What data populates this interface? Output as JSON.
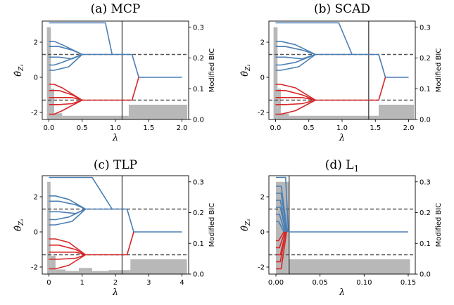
{
  "figure": {
    "colors": {
      "group_pos": "#4a7fb5",
      "group_neg": "#d62728",
      "bic_bar": "#b8b8b8",
      "dashed": "#555555",
      "vline": "#333333"
    }
  },
  "chart_data": [
    {
      "type": "line",
      "title": "(a) MCP",
      "xlabel": "λ",
      "ylabel_left": "θ̂_{Z₁}",
      "ylabel_right": "Modified BIC",
      "xlim": [
        -0.1,
        2.1
      ],
      "ylim_left": [
        -2.4,
        3.2
      ],
      "ylim_right": [
        0,
        0.32
      ],
      "xticks": [
        0.0,
        0.5,
        1.0,
        1.5,
        2.0
      ],
      "xtick_labels": [
        "0.0",
        "0.5",
        "1.0",
        "1.5",
        "2.0"
      ],
      "yticks_left": [
        -2,
        0,
        2
      ],
      "yticks_right": [
        0.0,
        0.1,
        0.2,
        0.3
      ],
      "dashed_levels": [
        1.3,
        -1.3
      ],
      "selected_lambda": 1.1,
      "group_pos": {
        "top": [
          [
            0,
            3.1
          ],
          [
            0.85,
            3.1
          ],
          [
            0.95,
            1.3
          ]
        ],
        "cluster": [
          [
            [
              0,
              2.05
            ],
            [
              0.08,
              2.05
            ],
            [
              0.2,
              1.85
            ],
            [
              0.5,
              1.3
            ]
          ],
          [
            [
              0,
              1.75
            ],
            [
              0.15,
              1.75
            ],
            [
              0.35,
              1.55
            ],
            [
              0.5,
              1.3
            ]
          ],
          [
            [
              0,
              1.15
            ],
            [
              0.15,
              1.15
            ],
            [
              0.35,
              1.05
            ],
            [
              0.5,
              1.3
            ]
          ],
          [
            [
              0,
              0.7
            ],
            [
              0.08,
              0.7
            ],
            [
              0.2,
              0.85
            ],
            [
              0.5,
              1.3
            ]
          ],
          [
            [
              0,
              0.4
            ],
            [
              0.08,
              0.4
            ],
            [
              0.3,
              0.6
            ],
            [
              0.5,
              1.3
            ]
          ]
        ],
        "trunk": [
          [
            0.5,
            1.3
          ],
          [
            1.25,
            1.3
          ]
        ],
        "tail": [
          [
            1.25,
            1.3
          ],
          [
            1.35,
            0
          ],
          [
            2.0,
            0
          ]
        ]
      },
      "group_neg": {
        "cluster": [
          [
            [
              0,
              -0.4
            ],
            [
              0.08,
              -0.4
            ],
            [
              0.2,
              -0.6
            ],
            [
              0.5,
              -1.3
            ]
          ],
          [
            [
              0,
              -0.75
            ],
            [
              0.15,
              -0.75
            ],
            [
              0.35,
              -1.0
            ],
            [
              0.5,
              -1.3
            ]
          ],
          [
            [
              0,
              -1.15
            ],
            [
              0.15,
              -1.15
            ],
            [
              0.35,
              -1.15
            ],
            [
              0.5,
              -1.3
            ]
          ],
          [
            [
              0,
              -1.55
            ],
            [
              0.15,
              -1.55
            ],
            [
              0.35,
              -1.5
            ],
            [
              0.5,
              -1.3
            ]
          ],
          [
            [
              0,
              -2.1
            ],
            [
              0.08,
              -2.1
            ],
            [
              0.2,
              -1.9
            ],
            [
              0.5,
              -1.3
            ]
          ]
        ],
        "trunk": [
          [
            0.5,
            -1.3
          ],
          [
            1.25,
            -1.3
          ]
        ],
        "tail": [
          [
            1.25,
            -1.3
          ],
          [
            1.35,
            0
          ]
        ]
      },
      "bic_bars": [
        [
          -0.03,
          0.03,
          0.3
        ],
        [
          0.03,
          0.08,
          0.1
        ],
        [
          0.08,
          0.2,
          0.02
        ],
        [
          0.2,
          1.2,
          0.012
        ],
        [
          1.2,
          2.08,
          0.048
        ]
      ]
    },
    {
      "type": "line",
      "title": "(b) SCAD",
      "xlabel": "λ",
      "ylabel_left": "θ̂_{Z₁}",
      "ylabel_right": "Modified BIC",
      "xlim": [
        -0.1,
        2.1
      ],
      "ylim_left": [
        -2.4,
        3.2
      ],
      "ylim_right": [
        0,
        0.32
      ],
      "xticks": [
        0.0,
        0.5,
        1.0,
        1.5,
        2.0
      ],
      "xtick_labels": [
        "0.0",
        "0.5",
        "1.0",
        "1.5",
        "2.0"
      ],
      "yticks_left": [
        -2,
        0,
        2
      ],
      "yticks_right": [
        0.0,
        0.1,
        0.2,
        0.3
      ],
      "dashed_levels": [
        1.3,
        -1.3
      ],
      "selected_lambda": 1.4,
      "group_pos": {
        "top": [
          [
            0,
            3.1
          ],
          [
            0.95,
            3.1
          ],
          [
            1.15,
            1.3
          ]
        ],
        "cluster": [
          [
            [
              0,
              2.05
            ],
            [
              0.08,
              2.05
            ],
            [
              0.3,
              1.85
            ],
            [
              0.6,
              1.3
            ]
          ],
          [
            [
              0,
              1.75
            ],
            [
              0.15,
              1.75
            ],
            [
              0.4,
              1.55
            ],
            [
              0.6,
              1.3
            ]
          ],
          [
            [
              0,
              1.15
            ],
            [
              0.15,
              1.15
            ],
            [
              0.4,
              1.05
            ],
            [
              0.6,
              1.3
            ]
          ],
          [
            [
              0,
              0.7
            ],
            [
              0.08,
              0.7
            ],
            [
              0.3,
              0.85
            ],
            [
              0.6,
              1.3
            ]
          ],
          [
            [
              0,
              0.4
            ],
            [
              0.08,
              0.4
            ],
            [
              0.35,
              0.6
            ],
            [
              0.6,
              1.3
            ]
          ]
        ],
        "trunk": [
          [
            0.6,
            1.3
          ],
          [
            1.55,
            1.3
          ]
        ],
        "tail": [
          [
            1.55,
            1.3
          ],
          [
            1.65,
            0
          ],
          [
            2.0,
            0
          ]
        ]
      },
      "group_neg": {
        "cluster": [
          [
            [
              0,
              -0.4
            ],
            [
              0.08,
              -0.4
            ],
            [
              0.3,
              -0.6
            ],
            [
              0.6,
              -1.3
            ]
          ],
          [
            [
              0,
              -0.75
            ],
            [
              0.15,
              -0.75
            ],
            [
              0.4,
              -1.0
            ],
            [
              0.6,
              -1.3
            ]
          ],
          [
            [
              0,
              -1.15
            ],
            [
              0.15,
              -1.15
            ],
            [
              0.4,
              -1.15
            ],
            [
              0.6,
              -1.3
            ]
          ],
          [
            [
              0,
              -1.55
            ],
            [
              0.15,
              -1.55
            ],
            [
              0.4,
              -1.5
            ],
            [
              0.6,
              -1.3
            ]
          ],
          [
            [
              0,
              -2.1
            ],
            [
              0.08,
              -2.1
            ],
            [
              0.3,
              -1.9
            ],
            [
              0.6,
              -1.3
            ]
          ]
        ],
        "trunk": [
          [
            0.6,
            -1.3
          ],
          [
            1.55,
            -1.3
          ]
        ],
        "tail": [
          [
            1.55,
            -1.3
          ],
          [
            1.65,
            0
          ]
        ]
      },
      "bic_bars": [
        [
          -0.03,
          0.03,
          0.3
        ],
        [
          0.03,
          0.08,
          0.1
        ],
        [
          0.08,
          0.2,
          0.02
        ],
        [
          0.2,
          1.55,
          0.012
        ],
        [
          1.55,
          2.08,
          0.048
        ]
      ]
    },
    {
      "type": "line",
      "title": "(c) TLP",
      "xlabel": "λ",
      "ylabel_left": "θ̂_{Z₁}",
      "ylabel_right": "Modified BIC",
      "xlim": [
        -0.2,
        4.2
      ],
      "ylim_left": [
        -2.4,
        3.2
      ],
      "ylim_right": [
        0,
        0.32
      ],
      "xticks": [
        0,
        1,
        2,
        3,
        4
      ],
      "xtick_labels": [
        "0",
        "1",
        "2",
        "3",
        "4"
      ],
      "yticks_left": [
        -2,
        0,
        2
      ],
      "yticks_right": [
        0.0,
        0.1,
        0.2,
        0.3
      ],
      "dashed_levels": [
        1.3,
        -1.3
      ],
      "selected_lambda": 2.2,
      "group_pos": {
        "top": [
          [
            0,
            3.1
          ],
          [
            1.3,
            3.1
          ],
          [
            1.9,
            1.3
          ]
        ],
        "cluster": [
          [
            [
              0,
              2.05
            ],
            [
              0.2,
              2.05
            ],
            [
              0.6,
              1.85
            ],
            [
              1.1,
              1.3
            ]
          ],
          [
            [
              0,
              1.75
            ],
            [
              0.3,
              1.75
            ],
            [
              0.8,
              1.55
            ],
            [
              1.1,
              1.3
            ]
          ],
          [
            [
              0,
              1.15
            ],
            [
              0.3,
              1.15
            ],
            [
              0.8,
              1.05
            ],
            [
              1.1,
              1.3
            ]
          ],
          [
            [
              0,
              0.7
            ],
            [
              0.2,
              0.7
            ],
            [
              0.6,
              0.85
            ],
            [
              1.1,
              1.3
            ]
          ],
          [
            [
              0,
              0.4
            ],
            [
              0.2,
              0.4
            ],
            [
              0.7,
              0.6
            ],
            [
              1.1,
              1.3
            ]
          ]
        ],
        "trunk": [
          [
            1.1,
            1.3
          ],
          [
            2.35,
            1.3
          ]
        ],
        "tail": [
          [
            2.35,
            1.3
          ],
          [
            2.55,
            0
          ],
          [
            4.0,
            0
          ]
        ]
      },
      "group_neg": {
        "cluster": [
          [
            [
              0,
              -0.4
            ],
            [
              0.2,
              -0.4
            ],
            [
              0.6,
              -0.6
            ],
            [
              1.1,
              -1.3
            ]
          ],
          [
            [
              0,
              -0.75
            ],
            [
              0.3,
              -0.75
            ],
            [
              0.8,
              -1.0
            ],
            [
              1.1,
              -1.3
            ]
          ],
          [
            [
              0,
              -1.15
            ],
            [
              0.3,
              -1.15
            ],
            [
              0.8,
              -1.15
            ],
            [
              1.1,
              -1.3
            ]
          ],
          [
            [
              0,
              -1.55
            ],
            [
              0.3,
              -1.55
            ],
            [
              0.8,
              -1.5
            ],
            [
              1.1,
              -1.3
            ]
          ],
          [
            [
              0,
              -2.1
            ],
            [
              0.2,
              -2.1
            ],
            [
              0.6,
              -1.9
            ],
            [
              1.1,
              -1.3
            ]
          ]
        ],
        "trunk": [
          [
            1.1,
            -1.3
          ],
          [
            2.35,
            -1.3
          ]
        ],
        "tail": [
          [
            2.35,
            -1.3
          ],
          [
            2.55,
            0
          ]
        ]
      },
      "bic_bars": [
        [
          -0.05,
          0.05,
          0.3
        ],
        [
          0.05,
          0.2,
          0.06
        ],
        [
          0.2,
          0.5,
          0.015
        ],
        [
          0.5,
          0.9,
          0.01
        ],
        [
          0.9,
          1.3,
          0.02
        ],
        [
          1.3,
          1.8,
          0.01
        ],
        [
          1.8,
          2.45,
          0.013
        ],
        [
          2.45,
          4.15,
          0.048
        ]
      ]
    },
    {
      "type": "line",
      "title": "(d) L",
      "title_subscript": "1",
      "xlabel": "λ",
      "ylabel_left": "θ̂_{Z₁}",
      "ylabel_right": "Modified BIC",
      "xlim": [
        -0.008,
        0.158
      ],
      "ylim_left": [
        -2.4,
        3.2
      ],
      "ylim_right": [
        0,
        0.32
      ],
      "xticks": [
        0.0,
        0.05,
        0.1,
        0.15
      ],
      "xtick_labels": [
        "0.00",
        "0.05",
        "0.10",
        "0.15"
      ],
      "yticks_left": [
        -2,
        0,
        2
      ],
      "yticks_right": [
        0.0,
        0.1,
        0.2,
        0.3
      ],
      "dashed_levels": [
        1.3,
        -1.3
      ],
      "selected_lambda": 0.015,
      "group_pos": {
        "top": [
          [
            0,
            3.1
          ],
          [
            0.011,
            3.1
          ],
          [
            0.014,
            0
          ]
        ],
        "cluster": [
          [
            [
              0,
              2.6
            ],
            [
              0.006,
              2.6
            ],
            [
              0.013,
              0
            ]
          ],
          [
            [
              0,
              2.2
            ],
            [
              0.006,
              2.2
            ],
            [
              0.012,
              0
            ]
          ],
          [
            [
              0,
              1.8
            ],
            [
              0.005,
              1.8
            ],
            [
              0.011,
              0
            ]
          ],
          [
            [
              0,
              1.4
            ],
            [
              0.005,
              1.4
            ],
            [
              0.011,
              0
            ]
          ],
          [
            [
              0,
              1.0
            ],
            [
              0.004,
              1.0
            ],
            [
              0.01,
              0
            ]
          ],
          [
            [
              0,
              0.6
            ],
            [
              0.003,
              0.6
            ],
            [
              0.009,
              0
            ]
          ]
        ],
        "trunk": [
          [
            0.014,
            0
          ],
          [
            0.15,
            0
          ]
        ],
        "tail": [
          [
            0.15,
            0
          ],
          [
            0.15,
            0
          ]
        ]
      },
      "group_neg": {
        "cluster": [
          [
            [
              0,
              -0.5
            ],
            [
              0.003,
              -0.5
            ],
            [
              0.009,
              0
            ]
          ],
          [
            [
              0,
              -0.9
            ],
            [
              0.004,
              -0.9
            ],
            [
              0.01,
              0
            ]
          ],
          [
            [
              0,
              -1.3
            ],
            [
              0.005,
              -1.3
            ],
            [
              0.011,
              0
            ]
          ],
          [
            [
              0,
              -1.7
            ],
            [
              0.005,
              -1.7
            ],
            [
              0.011,
              0
            ]
          ],
          [
            [
              0,
              -2.1
            ],
            [
              0.006,
              -2.1
            ],
            [
              0.012,
              0
            ]
          ]
        ],
        "trunk": [
          [
            0.012,
            0
          ],
          [
            0.013,
            0
          ]
        ],
        "tail": [
          [
            0.013,
            0
          ],
          [
            0.013,
            0
          ]
        ]
      },
      "bic_bars": [
        [
          0.0,
          0.013,
          0.3
        ],
        [
          0.013,
          0.015,
          0.3
        ],
        [
          0.015,
          0.152,
          0.048
        ]
      ]
    }
  ]
}
